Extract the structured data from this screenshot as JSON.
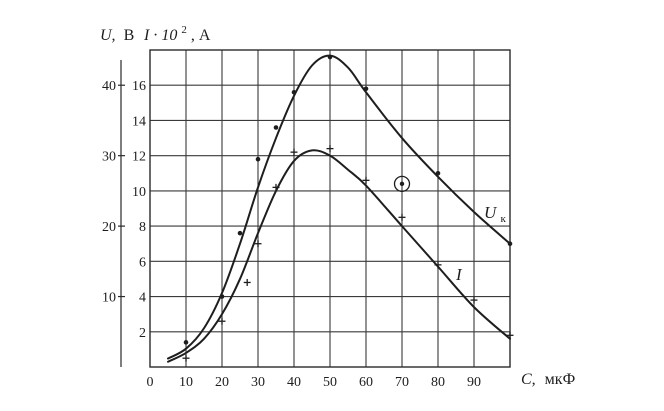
{
  "chart_data": {
    "type": "line",
    "title": "",
    "xlabel": "C,",
    "xlabel_unit": "мкФ",
    "ylabel_left": "U,",
    "ylabel_left_unit": "В",
    "ylabel_right": "I · 10",
    "ylabel_right_exp": "2",
    "ylabel_right_unit": ", А",
    "xlim": [
      0,
      100
    ],
    "ylim_U": [
      0,
      45
    ],
    "ylim_I": [
      0,
      18
    ],
    "x_ticks": [
      0,
      10,
      20,
      30,
      40,
      50,
      60,
      70,
      80,
      90
    ],
    "x_tick_labels": [
      "0",
      "10",
      "20",
      "30",
      "40",
      "50",
      "60",
      "70",
      "80",
      "90"
    ],
    "y_U_ticks": [
      10,
      20,
      30,
      40
    ],
    "y_U_tick_labels": [
      "10",
      "20",
      "30",
      "40"
    ],
    "y_I_ticks": [
      2,
      4,
      6,
      8,
      10,
      12,
      14,
      16
    ],
    "y_I_tick_labels": [
      "2",
      "4",
      "6",
      "8",
      "10",
      "12",
      "14",
      "16"
    ],
    "grid": true,
    "series": [
      {
        "name": "U",
        "name_sub": "к",
        "axis": "U",
        "marker": "dot",
        "points": [
          [
            10,
            3.5
          ],
          [
            20,
            10
          ],
          [
            25,
            19
          ],
          [
            30,
            29.5
          ],
          [
            35,
            34
          ],
          [
            40,
            39
          ],
          [
            50,
            44
          ],
          [
            60,
            39.5
          ],
          [
            80,
            27.5
          ],
          [
            100,
            17.5
          ]
        ],
        "curve": [
          [
            5,
            1.2
          ],
          [
            10,
            2.6
          ],
          [
            15,
            5.5
          ],
          [
            20,
            10.5
          ],
          [
            25,
            17.5
          ],
          [
            30,
            25.5
          ],
          [
            35,
            32.5
          ],
          [
            40,
            38.5
          ],
          [
            45,
            42.8
          ],
          [
            50,
            44.2
          ],
          [
            55,
            42.5
          ],
          [
            60,
            39
          ],
          [
            70,
            32.5
          ],
          [
            80,
            27
          ],
          [
            90,
            22
          ],
          [
            100,
            17.5
          ]
        ]
      },
      {
        "name": "I",
        "axis": "I",
        "marker": "plus",
        "points": [
          [
            10,
            0.5
          ],
          [
            20,
            2.6
          ],
          [
            27,
            4.8
          ],
          [
            30,
            7
          ],
          [
            35,
            10.2
          ],
          [
            40,
            12.2
          ],
          [
            50,
            12.4
          ],
          [
            60,
            10.6
          ],
          [
            70,
            8.5
          ],
          [
            80,
            5.8
          ],
          [
            90,
            3.8
          ],
          [
            100,
            1.8
          ]
        ],
        "curve": [
          [
            5,
            0.3
          ],
          [
            10,
            0.8
          ],
          [
            15,
            1.6
          ],
          [
            20,
            3
          ],
          [
            25,
            5
          ],
          [
            30,
            7.6
          ],
          [
            35,
            10
          ],
          [
            40,
            11.7
          ],
          [
            45,
            12.3
          ],
          [
            50,
            12
          ],
          [
            55,
            11.2
          ],
          [
            60,
            10.3
          ],
          [
            70,
            8
          ],
          [
            80,
            5.7
          ],
          [
            90,
            3.4
          ],
          [
            100,
            1.6
          ]
        ]
      }
    ],
    "highlight_point": {
      "series": "U",
      "x": 70,
      "y": 26
    }
  }
}
